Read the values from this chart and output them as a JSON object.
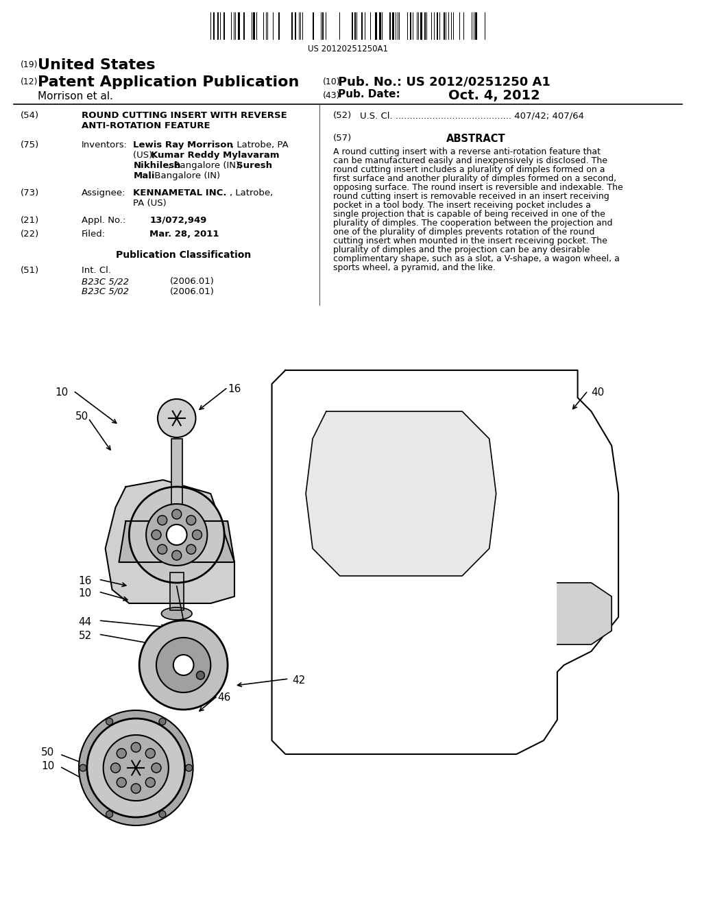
{
  "bg_color": "#ffffff",
  "barcode_text": "US 20120251250A1",
  "header_19": "(19)",
  "header_19_text": "United States",
  "header_12": "(12)",
  "header_12_text": "Patent Application Publication",
  "header_morrison": "Morrison et al.",
  "header_10": "(10)",
  "header_10_label": "Pub. No.:",
  "header_10_value": "US 2012/0251250 A1",
  "header_43": "(43)",
  "header_43_label": "Pub. Date:",
  "header_43_value": "Oct. 4, 2012",
  "field_54_label": "(54)",
  "field_54_title1": "ROUND CUTTING INSERT WITH REVERSE",
  "field_54_title2": "ANTI-ROTATION FEATURE",
  "field_52_label": "(52)",
  "field_52_text": "U.S. Cl. ......................................... 407/42; 407/64",
  "field_75_label": "(75)",
  "field_75_heading": "Inventors:",
  "field_75_text1": "Lewis Ray Morrison, Latrobe, PA",
  "field_75_text2": "(US); Kumar Reddy Mylavaram",
  "field_75_text3": "Nikhilesh, Bangalore (IN); Suresh",
  "field_75_text4": "Mali, Bangalore (IN)",
  "field_57_label": "(57)",
  "field_57_heading": "ABSTRACT",
  "abstract": "A round cutting insert with a reverse anti-rotation feature that can be manufactured easily and inexpensively is disclosed. The round cutting insert includes a plurality of dimples formed on a first surface and another plurality of dimples formed on a second, opposing surface. The round insert is reversible and indexable. The round cutting insert is removable received in an insert receiving pocket in a tool body. The insert receiving pocket includes a single projection that is capable of being received in one of the plurality of dimples. The cooperation between the projection and one of the plurality of dimples prevents rotation of the round cutting insert when mounted in the insert receiving pocket. The plurality of dimples and the projection can be any desirable complimentary shape, such as a slot, a V-shape, a wagon wheel, a sports wheel, a pyramid, and the like.",
  "field_73_label": "(73)",
  "field_73_heading": "Assignee:",
  "field_73_text1": "KENNAMETAL INC., Latrobe,",
  "field_73_text2": "PA (US)",
  "field_21_label": "(21)",
  "field_21_heading": "Appl. No.:",
  "field_21_value": "13/072,949",
  "field_22_label": "(22)",
  "field_22_heading": "Filed:",
  "field_22_value": "Mar. 28, 2011",
  "pub_class_heading": "Publication Classification",
  "field_51_label": "(51)",
  "field_51_heading": "Int. Cl.",
  "field_51_b23c_522": "B23C 5/22",
  "field_51_b23c_522_date": "(2006.01)",
  "field_51_b23c_502": "B23C 5/02",
  "field_51_b23c_502_date": "(2006.01)",
  "diagram_label_10a": "10",
  "diagram_label_16a": "16",
  "diagram_label_50a": "50",
  "diagram_label_40": "40",
  "diagram_label_16b": "16",
  "diagram_label_10b": "10",
  "diagram_label_44": "44",
  "diagram_label_52": "52",
  "diagram_label_42": "42",
  "diagram_label_46": "46",
  "diagram_label_50b": "50",
  "diagram_label_10c": "10"
}
